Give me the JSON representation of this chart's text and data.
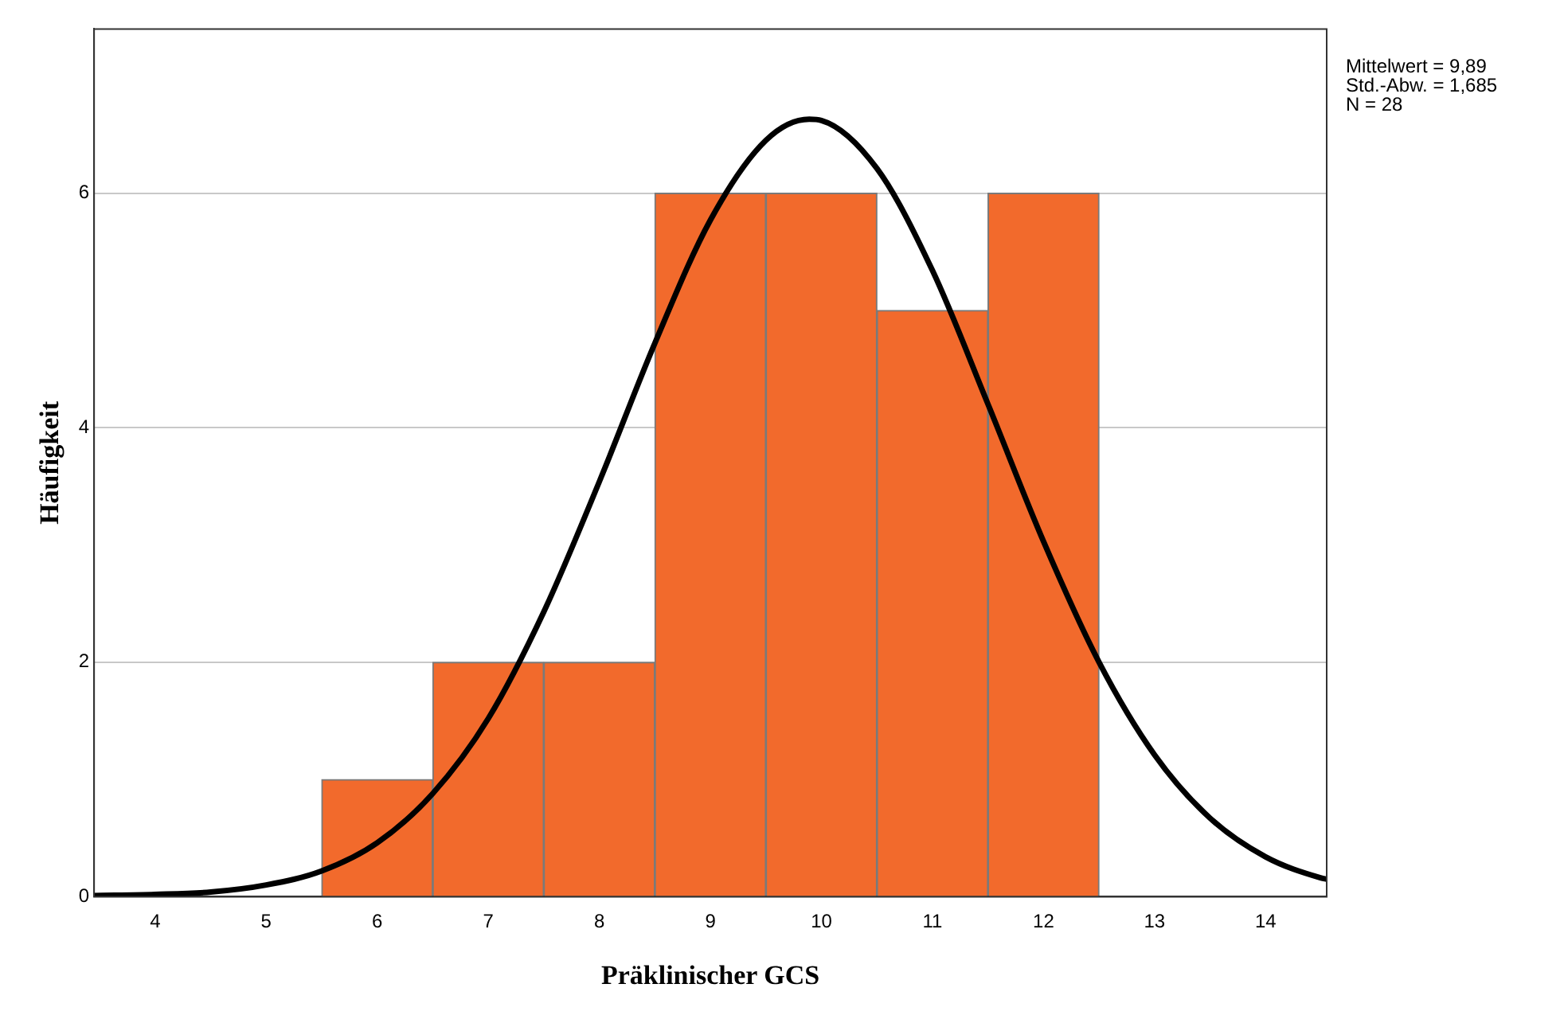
{
  "chart_data": {
    "type": "histogram",
    "xlabel": "Präklinischer GCS",
    "ylabel": "Häufigkeit",
    "bins": [
      5.5,
      6.5,
      7.5,
      8.5,
      9.5,
      10.5,
      11.5,
      12.5
    ],
    "values": [
      1,
      2,
      2,
      6,
      6,
      5,
      6
    ],
    "color": "#f26a2c",
    "series": [
      {
        "type": "line",
        "color": "#000000",
        "x": [
          3.45,
          4,
          4.5,
          5,
          5.5,
          6,
          6.5,
          7,
          7.5,
          8,
          8.5,
          9,
          9.5,
          9.89,
          10,
          10.5,
          11,
          11.5,
          12,
          12.5,
          13,
          13.5,
          14,
          14.5,
          14.55
        ],
        "values": [
          0.01,
          0.02,
          0.04,
          0.1,
          0.22,
          0.46,
          0.88,
          1.52,
          2.43,
          3.54,
          4.72,
          5.77,
          6.45,
          6.63,
          6.62,
          6.21,
          5.34,
          4.2,
          3.03,
          2.0,
          1.21,
          0.67,
          0.34,
          0.16,
          0.15
        ]
      }
    ],
    "xlim": [
      3.45,
      14.55
    ],
    "xticks": [
      4,
      5,
      6,
      7,
      8,
      9,
      10,
      11,
      12,
      13,
      14
    ],
    "ylim": [
      0,
      7.4
    ],
    "yticks": [
      0,
      2,
      4,
      6
    ],
    "grid": "y",
    "legend": false,
    "annotations": [
      "Mittelwert = 9,89",
      "Std.-Abw. = 1,685",
      "N = 28"
    ]
  }
}
